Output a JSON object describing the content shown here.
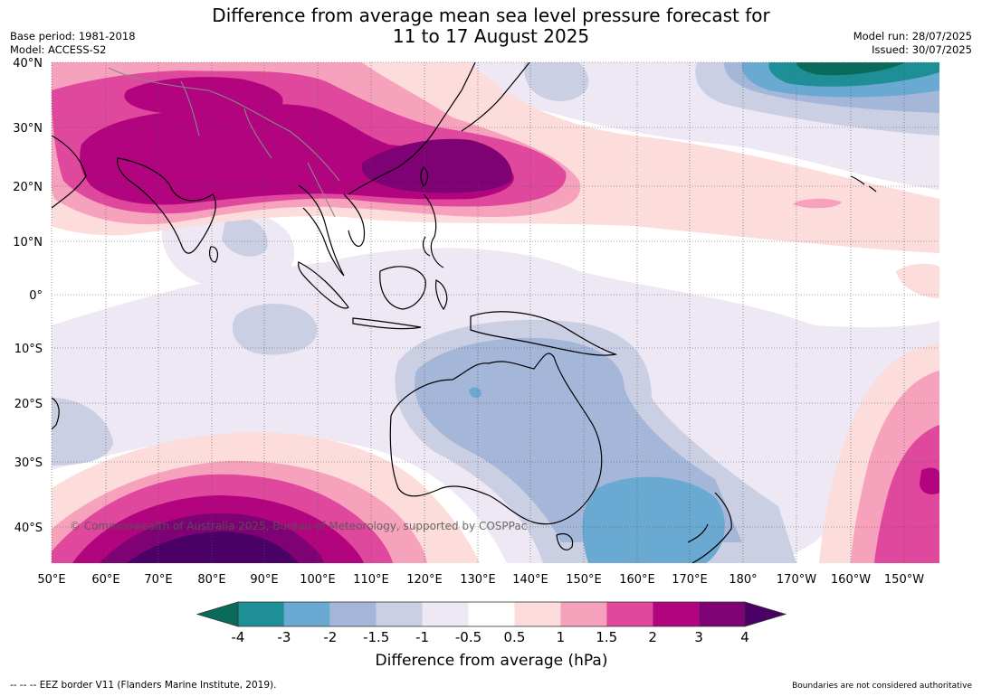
{
  "header": {
    "title_line1": "Difference from average mean sea level pressure forecast for",
    "title_line2": "11 to 17 August 2025",
    "base_period": "Base period: 1981-2018",
    "model": "Model: ACCESS-S2",
    "model_run": "Model run: 28/07/2025",
    "issued": "Issued: 30/07/2025"
  },
  "map": {
    "lat_labels": [
      "40°N",
      "30°N",
      "20°N",
      "10°N",
      "0°",
      "10°S",
      "20°S",
      "30°S",
      "40°S"
    ],
    "lon_labels": [
      "50°E",
      "60°E",
      "70°E",
      "80°E",
      "90°E",
      "100°E",
      "110°E",
      "120°E",
      "130°E",
      "140°E",
      "150°E",
      "160°E",
      "170°E",
      "180°",
      "170°W",
      "160°W",
      "150°W"
    ],
    "copyright": "© Commonwealth of Australia 2025, Bureau of Meteorology, supported by COSPPac"
  },
  "legend": {
    "ticks": [
      "-4",
      "-3",
      "-2",
      "-1.5",
      "-1",
      "-0.5",
      "0.5",
      "1",
      "1.5",
      "2",
      "3",
      "4"
    ],
    "colors": [
      "#0a6b5a",
      "#1e8f96",
      "#6aa9d2",
      "#a5b7d8",
      "#cbcfe4",
      "#ede8f4",
      "#ffffff",
      "#fddcdc",
      "#f7a2bd",
      "#e0489e",
      "#b3047f",
      "#7e0274",
      "#4b0066"
    ],
    "label": "Difference from average (hPa)"
  },
  "footer": {
    "eez_note": "--  --  -- EEZ border V11 (Flanders Marine Institute, 2019).",
    "boundaries_note": "Boundaries are not considered authoritative"
  }
}
